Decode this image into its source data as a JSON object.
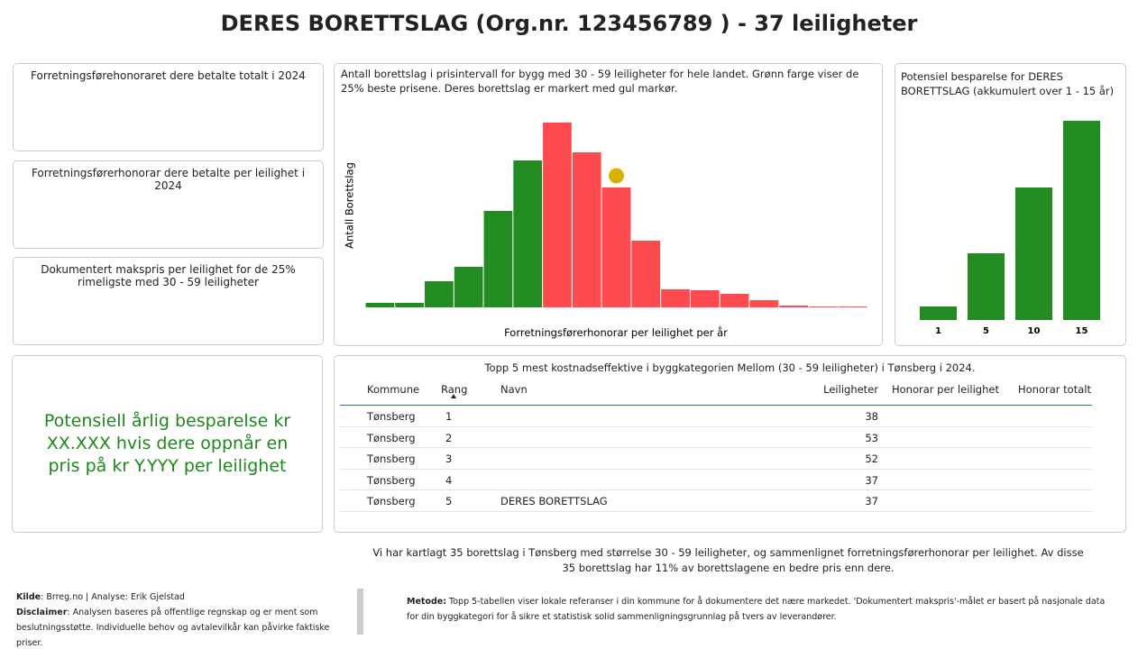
{
  "header": {
    "title": "DERES BORETTSLAG (Org.nr. 123456789 ) - 37 leiligheter"
  },
  "cards": [
    "Forretningsførehonoraret dere betalte totalt i 2024",
    "Forretningsførerhonorar dere betalte per leilighet i 2024",
    "Dokumentert makspris per leilighet for de 25% rimeligste med 30 - 59 leiligheter"
  ],
  "savings_text": "Potensiell årlig besparelse kr XX.XXX hvis dere oppnår en pris på kr Y.YYY per leilighet",
  "chart_data": [
    {
      "type": "bar",
      "title": "Antall borettslag i prisintervall for bygg med 30 - 59 leiligheter for hele landet. Grønn farge viser de 25% beste prisene. Deres borettslag er markert med gul markør.",
      "x_label": "Forretningsførerhonorar per leilighet per år",
      "y_label": "Antall Borettslag",
      "categories": [
        null,
        null,
        null,
        null,
        null,
        null,
        null,
        null,
        null,
        null,
        null,
        null,
        null,
        null,
        null,
        null,
        null
      ],
      "values": [
        5,
        5,
        29,
        45,
        107,
        163,
        205,
        172,
        133,
        74,
        20,
        19,
        15,
        8,
        2,
        1,
        1
      ],
      "colors": [
        "#228b22",
        "#228b22",
        "#228b22",
        "#228b22",
        "#228b22",
        "#228b22",
        "#fd4b4f",
        "#fd4b4f",
        "#fd4b4f",
        "#fd4b4f",
        "#fd4b4f",
        "#fd4b4f",
        "#fd4b4f",
        "#fd4b4f",
        "#fd4b4f",
        "#fd4b4f",
        "#fd4b4f"
      ],
      "marker": {
        "index": 8,
        "value": 146,
        "color": "#d9b100"
      },
      "ylim": [
        0,
        210
      ]
    },
    {
      "type": "bar",
      "title": "Potensiel besparelse for DERES BORETTSLAG (akkumulert over 1 - 15 år)",
      "categories": [
        "1",
        "5",
        "10",
        "15"
      ],
      "values": [
        15,
        74,
        147,
        221
      ],
      "color": "#228b22",
      "ylim": [
        0,
        230
      ]
    }
  ],
  "table": {
    "title": "Topp 5 mest kostnadseffektive i byggkategorien Mellom (30 - 59 leiligheter) i Tønsberg i 2024.",
    "columns": [
      "Kommune",
      "Rang",
      "Navn",
      "Leiligheter",
      "Honorar per leilighet",
      "Honorar totalt"
    ],
    "rows": [
      {
        "kommune": "Tønsberg",
        "rang": 1,
        "leiligheter": 38
      },
      {
        "kommune": "Tønsberg",
        "rang": 2,
        "leiligheter": 53
      },
      {
        "kommune": "Tønsberg",
        "rang": 3,
        "leiligheter": 52
      },
      {
        "kommune": "Tønsberg",
        "rang": 4,
        "leiligheter": 37
      },
      {
        "kommune": "Tønsberg",
        "rang": 5,
        "navn": "DERES BORETTSLAG",
        "leiligheter": 37
      }
    ]
  },
  "summary": "Vi har kartlagt 35 borettslag i Tønsberg med størrelse 30 - 59 leiligheter, og sammenlignet forretningsførerhonorar per leilighet. Av disse 35 borettslag har 11% av borettslagene en bedre pris enn dere.",
  "footer": {
    "kilde_label": "Kilde",
    "kilde": ": Brreg.no | Analyse: Erik Gjelstad",
    "disclaimer_label": "Disclaimer",
    "disclaimer": ": Analysen baseres på offentlige regnskap og er ment som beslutningsstøtte. Individuelle behov og avtalevilkår kan påvirke faktiske priser.",
    "metode_label": "Metode:",
    "metode": " Topp 5-tabellen viser lokale referanser i din kommune for å dokumentere det nære markedet. 'Dokumentert makspris'-målet er basert på nasjonale data for din byggkategori for å sikre et statistisk solid sammenligningsgrunnlag på tvers av leverandører."
  }
}
